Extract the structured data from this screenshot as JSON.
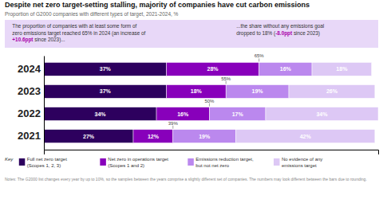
{
  "chart_data": {
    "type": "bar",
    "orientation": "horizontal",
    "stacked": true,
    "data_labels": true,
    "tick_labels": "y",
    "grid": false,
    "legend": "bottom",
    "title": "Despite net zero target-setting stalling, majority of companies have cut carbon emissions",
    "subtitle": "Proportion of G2000 companies with different types of target, 2021-2024, %",
    "annotations": [
      {
        "lines": [
          [
            {
              "text": "The proportion of companies with at least some form of"
            }
          ],
          [
            {
              "text": "zero emissions target reached 65% in 2024 (an increase of"
            }
          ],
          [
            {
              "text": "+10.6ppt",
              "color": "#aa00aa"
            },
            {
              "text": " since 2023)..."
            }
          ]
        ]
      },
      {
        "lines": [
          [
            {
              "text": "...the share without any emissions goal"
            }
          ],
          [
            {
              "text": "dropped to 18% ("
            },
            {
              "text": "-8.0ppt",
              "color": "#aa00aa"
            },
            {
              "text": " since 2023)"
            }
          ]
        ]
      }
    ],
    "categories": [
      "2024",
      "2023",
      "2022",
      "2021"
    ],
    "series": [
      {
        "name": "Full net zero target\n(Scopes 1, 2, 3)",
        "color": "#2d005e",
        "values": [
          37,
          37,
          34,
          27
        ],
        "value_labels": [
          "37%",
          "37%",
          "34%",
          "27%"
        ]
      },
      {
        "name": "Net zero in operations target\n(Scopes 1 and 2)",
        "color": "#8800bb",
        "values": [
          28,
          18,
          16,
          12
        ],
        "value_labels": [
          "28%",
          "18%",
          "16%",
          "12%"
        ]
      },
      {
        "name": "Emissions reduction target,\nbut not net zero",
        "color": "#bb88ee",
        "values": [
          16,
          19,
          17,
          19
        ],
        "value_labels": [
          "16%",
          "19%",
          "17%",
          "19%"
        ]
      },
      {
        "name": "No evidence of any\nemissions target",
        "color": "#ddc8f5",
        "values": [
          18,
          26,
          34,
          42
        ],
        "value_labels": [
          "18%",
          "26%",
          "34%",
          "42%"
        ]
      }
    ],
    "cumulative": {
      "values": [
        65,
        55,
        50,
        39
      ],
      "value_labels": [
        "65%",
        "55%",
        "50%",
        "39%"
      ]
    },
    "xlim": [
      0,
      101
    ],
    "xticks": [],
    "legend_title": "Key",
    "notes": "Notes: The G2000 list changes every year by up to 10%, so the samples between the years comprise a slightly different set of companies. The numbers may look different between the bars due to rounding."
  }
}
